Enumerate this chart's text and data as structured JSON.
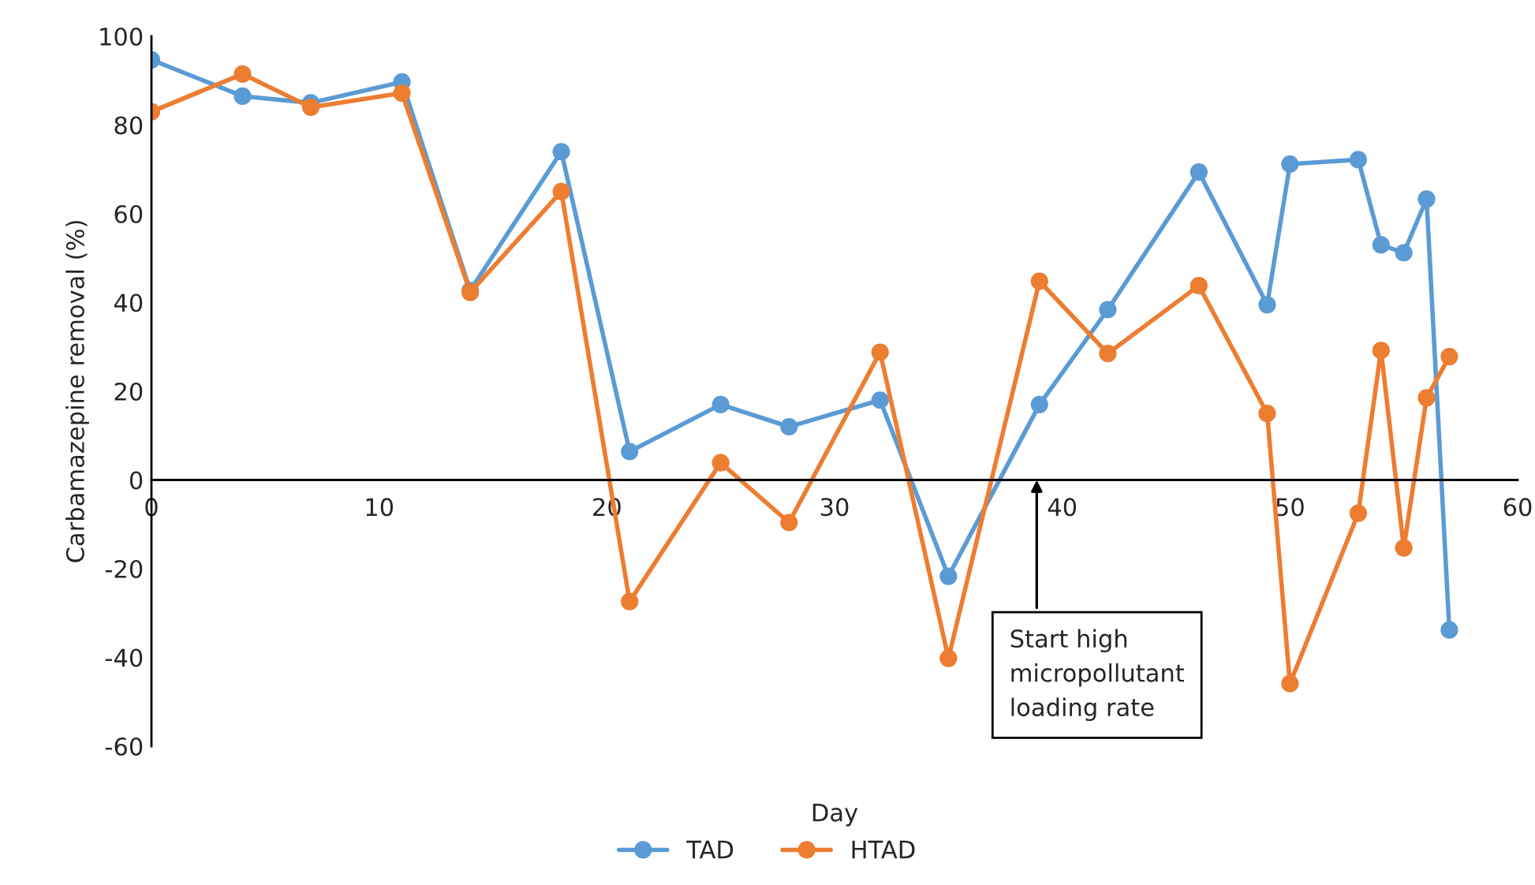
{
  "chart_data": {
    "type": "line",
    "xlabel": "Day",
    "ylabel": "Carbamazepine removal (%)",
    "xlim": [
      0,
      60
    ],
    "xticks": [
      0,
      10,
      20,
      30,
      40,
      50,
      60
    ],
    "ylim": [
      -60,
      100
    ],
    "yticks": [
      -60,
      -40,
      -20,
      0,
      20,
      40,
      60,
      80,
      100
    ],
    "grid": false,
    "legend": "bottom",
    "marker": "circle",
    "line_style": "solid",
    "x": [
      0,
      4,
      7,
      11,
      14,
      18,
      21,
      25,
      28,
      32,
      35,
      39,
      42,
      46,
      49,
      50,
      53,
      54,
      55,
      56,
      57
    ],
    "series": [
      {
        "name": "TAD",
        "color": "#5b9bd5",
        "values": [
          94.7,
          86.5,
          85,
          89.7,
          42.7,
          74,
          6.4,
          17,
          12,
          18,
          -21.7,
          17,
          38.4,
          69.4,
          39.5,
          71.2,
          72.2,
          53,
          51.2,
          63.3,
          -33.8
        ]
      },
      {
        "name": "HTAD",
        "color": "#ed7d31",
        "values": [
          83,
          91.5,
          84,
          87.2,
          42.3,
          65,
          -27.4,
          3.9,
          -9.6,
          28.8,
          -40.2,
          44.8,
          28.5,
          43.8,
          15,
          -45.9,
          -7.5,
          29.2,
          -15.3,
          18.5,
          27.8
        ]
      }
    ],
    "annotations": [
      "Start high\nmicropollutant\nloading rate"
    ]
  }
}
